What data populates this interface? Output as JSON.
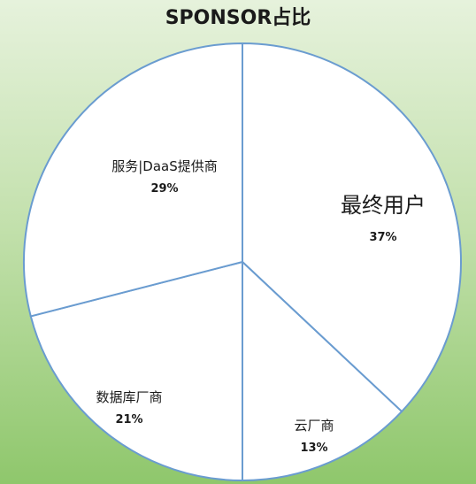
{
  "title": "SPONSOR占比",
  "chart_data": {
    "type": "pie",
    "title": "SPONSOR占比",
    "slices": [
      {
        "label": "最终用户",
        "value": 37,
        "percent_label": "37%"
      },
      {
        "label": "云厂商",
        "value": 13,
        "percent_label": "13%"
      },
      {
        "label": "数据库厂商",
        "value": 21,
        "percent_label": "21%"
      },
      {
        "label": "服务|DaaS提供商",
        "value": 29,
        "percent_label": "29%"
      }
    ],
    "start_angle": "12 o'clock",
    "direction": "clockwise",
    "colors": {
      "fill": "#ffffff",
      "stroke": "#6a9cd0"
    }
  }
}
